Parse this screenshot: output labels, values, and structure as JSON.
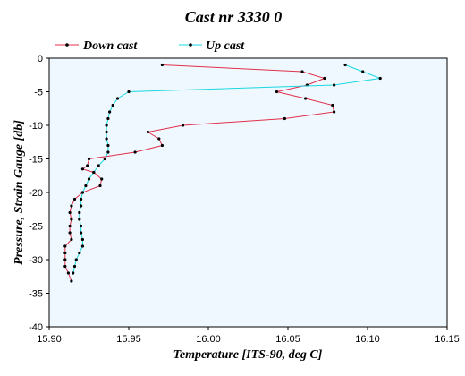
{
  "chart_data": {
    "type": "line",
    "title": "Cast nr 3330 0",
    "xlabel": "Temperature [ITS-90, deg C]",
    "ylabel": "Pressure, Strain Gauge [db]",
    "xlim": [
      15.9,
      16.15
    ],
    "ylim": [
      -40,
      0
    ],
    "x_ticks": [
      "15.90",
      "15.95",
      "16.00",
      "16.05",
      "16.10",
      "16.15"
    ],
    "y_ticks": [
      "0",
      "-5",
      "-10",
      "-15",
      "-20",
      "-25",
      "-30",
      "-35",
      "-40"
    ],
    "grid": false,
    "legend_position": "top",
    "series": [
      {
        "name": "Down cast",
        "color": "#e0304a",
        "points": [
          [
            15.971,
            -1.0
          ],
          [
            16.059,
            -2.0
          ],
          [
            16.073,
            -3.0
          ],
          [
            16.062,
            -4.0
          ],
          [
            16.043,
            -5.0
          ],
          [
            16.061,
            -6.0
          ],
          [
            16.078,
            -7.0
          ],
          [
            16.079,
            -8.0
          ],
          [
            16.048,
            -9.0
          ],
          [
            15.984,
            -10.0
          ],
          [
            15.962,
            -11.0
          ],
          [
            15.969,
            -12.0
          ],
          [
            15.971,
            -13.0
          ],
          [
            15.954,
            -14.0
          ],
          [
            15.925,
            -15.0
          ],
          [
            15.924,
            -16.0
          ],
          [
            15.921,
            -16.5
          ],
          [
            15.928,
            -17.0
          ],
          [
            15.933,
            -18.0
          ],
          [
            15.932,
            -19.0
          ],
          [
            15.921,
            -20.0
          ],
          [
            15.916,
            -21.0
          ],
          [
            15.914,
            -22.0
          ],
          [
            15.913,
            -23.0
          ],
          [
            15.914,
            -24.0
          ],
          [
            15.913,
            -25.0
          ],
          [
            15.913,
            -26.0
          ],
          [
            15.914,
            -27.0
          ],
          [
            15.91,
            -28.0
          ],
          [
            15.91,
            -29.0
          ],
          [
            15.91,
            -30.0
          ],
          [
            15.91,
            -31.0
          ],
          [
            15.912,
            -32.0
          ],
          [
            15.914,
            -33.2
          ]
        ]
      },
      {
        "name": "Up cast",
        "color": "#19d8e0",
        "points": [
          [
            16.086,
            -1.0
          ],
          [
            16.097,
            -2.0
          ],
          [
            16.108,
            -3.0
          ],
          [
            16.079,
            -4.0
          ],
          [
            15.95,
            -5.0
          ],
          [
            15.943,
            -6.0
          ],
          [
            15.94,
            -7.0
          ],
          [
            15.938,
            -8.0
          ],
          [
            15.937,
            -9.0
          ],
          [
            15.936,
            -10.0
          ],
          [
            15.936,
            -11.0
          ],
          [
            15.936,
            -12.0
          ],
          [
            15.937,
            -13.0
          ],
          [
            15.937,
            -14.0
          ],
          [
            15.935,
            -15.0
          ],
          [
            15.931,
            -16.0
          ],
          [
            15.928,
            -17.0
          ],
          [
            15.925,
            -18.0
          ],
          [
            15.923,
            -19.0
          ],
          [
            15.921,
            -20.0
          ],
          [
            15.92,
            -21.0
          ],
          [
            15.92,
            -22.0
          ],
          [
            15.919,
            -23.0
          ],
          [
            15.919,
            -24.0
          ],
          [
            15.92,
            -25.0
          ],
          [
            15.92,
            -26.0
          ],
          [
            15.921,
            -27.0
          ],
          [
            15.921,
            -28.0
          ],
          [
            15.919,
            -29.0
          ],
          [
            15.917,
            -30.0
          ],
          [
            15.916,
            -31.0
          ],
          [
            15.915,
            -32.0
          ]
        ]
      }
    ]
  }
}
